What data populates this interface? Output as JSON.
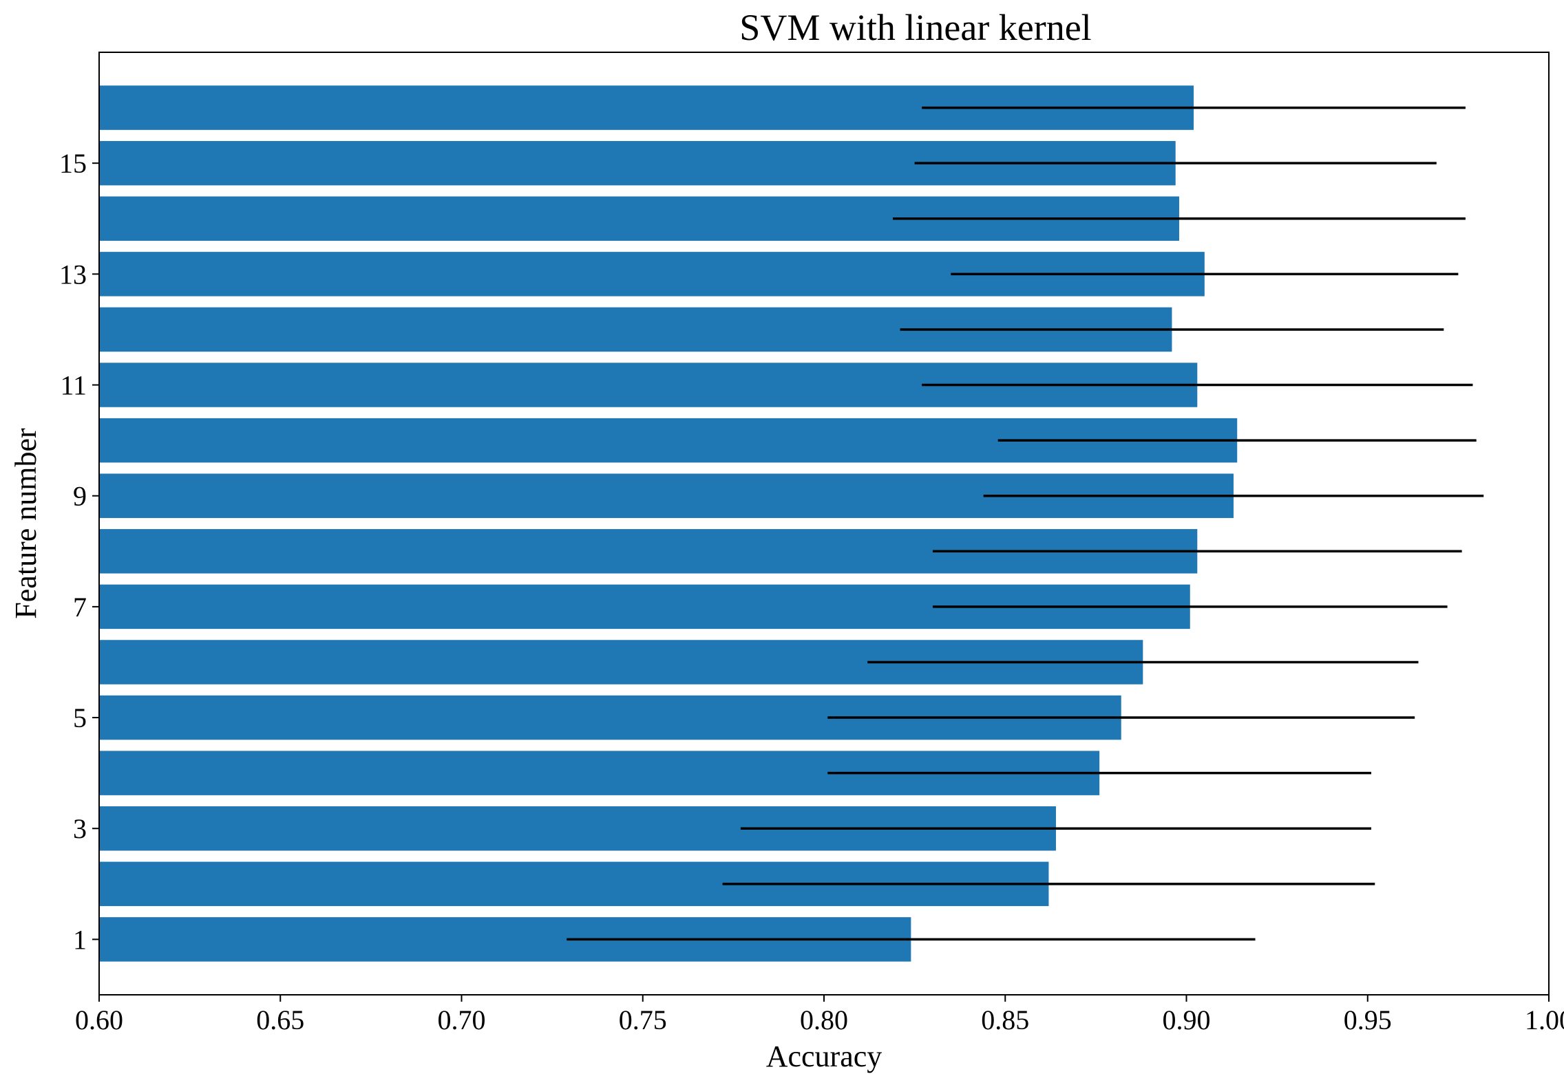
{
  "chart_data": {
    "type": "bar",
    "orientation": "horizontal",
    "title": "SVM with linear kernel",
    "xlabel": "Accuracy",
    "ylabel": "Feature number",
    "xlim": [
      0.6,
      1.0
    ],
    "ylim": [
      0,
      17
    ],
    "grid": false,
    "bar_color": "#1f77b4",
    "error_color": "#000000",
    "xticks": [
      "0.60",
      "0.65",
      "0.70",
      "0.75",
      "0.80",
      "0.85",
      "0.90",
      "0.95",
      "1.00"
    ],
    "yticks": [
      "1",
      "3",
      "5",
      "7",
      "9",
      "11",
      "13",
      "15"
    ],
    "categories": [
      1,
      2,
      3,
      4,
      5,
      6,
      7,
      8,
      9,
      10,
      11,
      12,
      13,
      14,
      15,
      16
    ],
    "values": [
      0.824,
      0.862,
      0.864,
      0.876,
      0.882,
      0.888,
      0.901,
      0.903,
      0.913,
      0.914,
      0.903,
      0.896,
      0.905,
      0.898,
      0.897,
      0.902
    ],
    "errors": [
      0.095,
      0.09,
      0.087,
      0.075,
      0.081,
      0.076,
      0.071,
      0.073,
      0.069,
      0.066,
      0.076,
      0.075,
      0.07,
      0.079,
      0.072,
      0.075
    ]
  }
}
